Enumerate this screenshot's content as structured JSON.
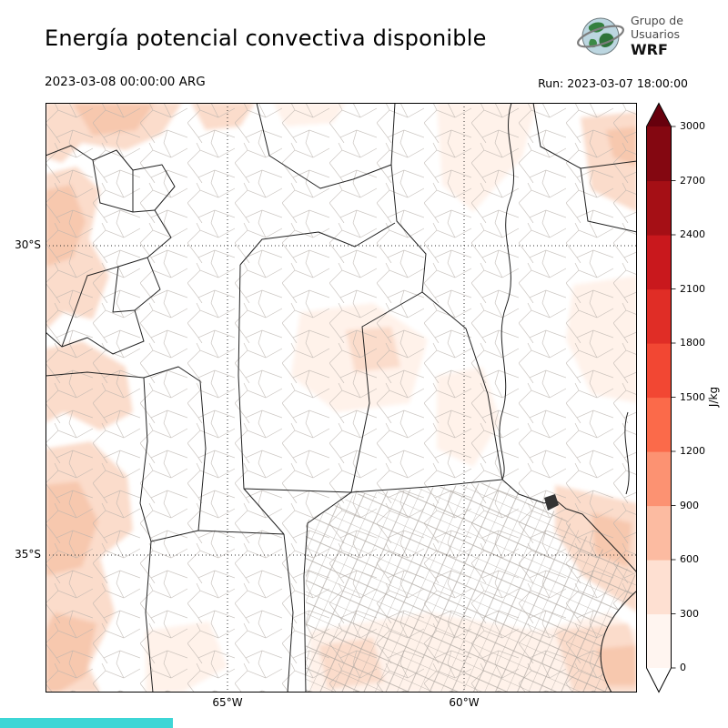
{
  "header": {
    "title": "Energía potencial convectiva disponible",
    "valid_time": "2023-03-08 00:00:00 ARG",
    "run_time": "Run: 2023-03-07 18:00:00",
    "logo": {
      "line1": "Grupo de",
      "line2": "Usuarios",
      "line3": "WRF"
    }
  },
  "map": {
    "lat_ticks": [
      "30°S",
      "35°S"
    ],
    "lon_ticks": [
      "65°W",
      "60°W"
    ]
  },
  "colorbar": {
    "unit": "J/kg",
    "tick_labels_top_to_bottom": [
      "3000",
      "2700",
      "2400",
      "2100",
      "1800",
      "1500",
      "1200",
      "900",
      "600",
      "300",
      "0"
    ],
    "band_colors_bottom_to_top": [
      "#fff5f0",
      "#fee0d2",
      "#fcbba1",
      "#fc9272",
      "#fb6a4a",
      "#f24733",
      "#e02d26",
      "#c9181d",
      "#a50f15",
      "#840711"
    ],
    "over_color": "#67000d",
    "under_color": "#ffffff"
  },
  "footer": {
    "strip_color": "#3ed6d6"
  },
  "chart_data": {
    "type": "heatmap",
    "title": "Energía potencial convectiva disponible",
    "units": "J/kg",
    "scale_min": 0,
    "scale_max": 3000,
    "scale_step": 300,
    "legend_position": "right-vertical-colorbar-with-over-under-arrows",
    "region": "central Argentina, approx 30°S–35°S and 65°W–60°W shown on grid",
    "field_summary": "CAPE shading mostly 0–600 J/kg (very light pink) along the western Andes margin, map top, eastern edge and southeastern coast; interior provinces largely near 0 (white)"
  }
}
